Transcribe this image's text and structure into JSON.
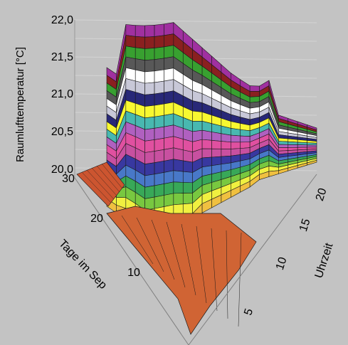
{
  "chart_data": {
    "type": "surface3d",
    "title": "",
    "zlabel": "Raumlufttemperatur [°C]",
    "xlabel": "Uhrzeit",
    "ylabel": "Tage im Sep",
    "zlim": [
      20.0,
      22.0
    ],
    "z_ticks": [
      "22,0",
      "21,5",
      "21,0",
      "20,5",
      "20,0"
    ],
    "x_ticks": [
      "5",
      "10",
      "15",
      "20"
    ],
    "y_ticks": [
      "10",
      "20",
      "30"
    ],
    "grid": true,
    "color_bands": [
      "#c85030",
      "#e08a30",
      "#f0c040",
      "#f0f040",
      "#78c840",
      "#38a858",
      "#4878c8",
      "#3838a0",
      "#c850a0",
      "#e050a0",
      "#b060c0",
      "#48b8b0",
      "#f8f830",
      "#282878",
      "#c8c8d8",
      "#ffffff",
      "#585858",
      "#38a030",
      "#8a2020",
      "#a030a0"
    ]
  }
}
